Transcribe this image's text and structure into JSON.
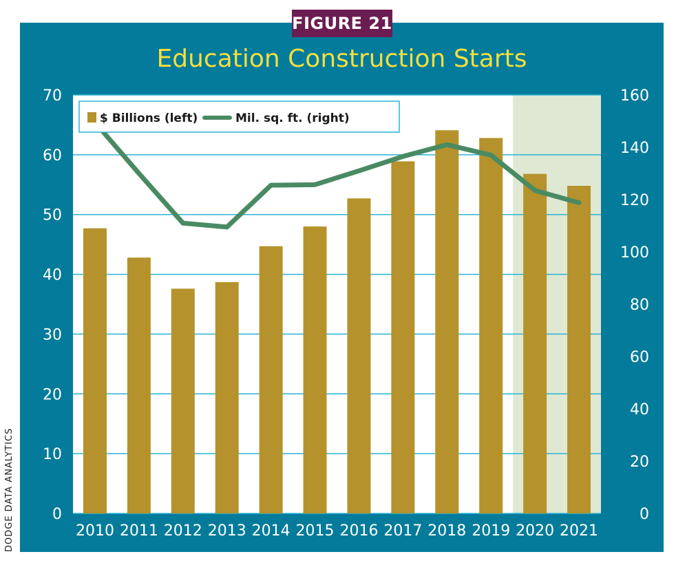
{
  "figure_label": "FIGURE 21",
  "source_label": "DODGE DATA ANALYTICS",
  "colors": {
    "frame": "#047b9a",
    "badge": "#6b1d52",
    "title": "#f4de3e",
    "bar": "#b5922c",
    "line": "#4a8a62",
    "forecast_band": "#dfe8d3",
    "gridline": "#2bb3d6"
  },
  "chart_data": {
    "type": "bar",
    "title": "Education Construction Starts",
    "categories": [
      "2010",
      "2011",
      "2012",
      "2013",
      "2014",
      "2015",
      "2016",
      "2017",
      "2018",
      "2019",
      "2020",
      "2021"
    ],
    "series": [
      {
        "name": "$ Billions (left)",
        "type": "bar",
        "axis": "left",
        "values": [
          47.7,
          42.8,
          37.6,
          38.7,
          44.7,
          48.0,
          52.7,
          58.9,
          64.1,
          62.8,
          56.8,
          54.8
        ]
      },
      {
        "name": "Mil. sq. ft. (right)",
        "type": "line",
        "axis": "right",
        "values": [
          149.5,
          130.0,
          111.0,
          109.5,
          125.5,
          125.7,
          131.0,
          136.5,
          141.0,
          137.0,
          123.5,
          118.8
        ]
      }
    ],
    "ylim_left": [
      0,
      70
    ],
    "yticks_left": [
      "0",
      "10",
      "20",
      "30",
      "40",
      "50",
      "60",
      "70"
    ],
    "ylim_right": [
      0,
      160
    ],
    "yticks_right": [
      "0",
      "20",
      "40",
      "60",
      "80",
      "100",
      "120",
      "140",
      "160"
    ],
    "forecast_categories": [
      "2020",
      "2021"
    ],
    "grid": true,
    "legend_placement": "top-left"
  }
}
